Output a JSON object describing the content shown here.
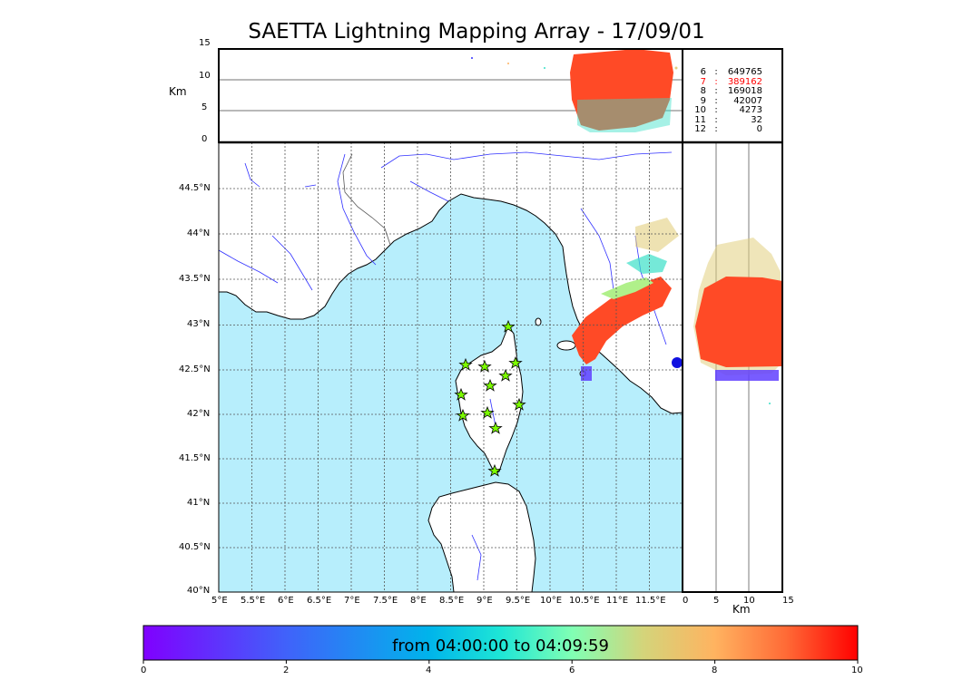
{
  "title": "SAETTA Lightning Mapping Array - 17/09/01",
  "alt_axis_label": "Km",
  "km_axis_label": "Km",
  "alt_ticks": [
    "15",
    "10",
    "5",
    "0"
  ],
  "km_ticks": [
    "0",
    "5",
    "10",
    "15"
  ],
  "lat_ticks": [
    "44.5°N",
    "44°N",
    "43.5°N",
    "43°N",
    "42.5°N",
    "42°N",
    "41.5°N",
    "41°N",
    "40.5°N",
    "40°N"
  ],
  "lon_ticks": [
    "5°E",
    "5.5°E",
    "6°E",
    "6.5°E",
    "7°E",
    "7.5°E",
    "8°E",
    "8.5°E",
    "9°E",
    "9.5°E",
    "10°E",
    "10.5°E",
    "11°E",
    "11.5°E"
  ],
  "station_counts": [
    {
      "level": "6",
      "count": "649765",
      "color": "#000000"
    },
    {
      "level": "7",
      "count": "389162",
      "color": "#ff0000"
    },
    {
      "level": "8",
      "count": "169018",
      "color": "#000000"
    },
    {
      "level": "9",
      "count": "42007",
      "color": "#000000"
    },
    {
      "level": "10",
      "count": "4273",
      "color": "#000000"
    },
    {
      "level": "11",
      "count": "32",
      "color": "#000000"
    },
    {
      "level": "12",
      "count": "0",
      "color": "#000000"
    }
  ],
  "colorbar": {
    "label": "from 04:00:00 to 04:09:59",
    "ticks": [
      "0",
      "2",
      "4",
      "6",
      "8",
      "10"
    ]
  },
  "colors": {
    "sea": "#b7eefc",
    "land": "#ffffff",
    "rivers": "#3030ff",
    "station_marker": "#7cfc00",
    "lightning_main": "#ff4a26"
  }
}
